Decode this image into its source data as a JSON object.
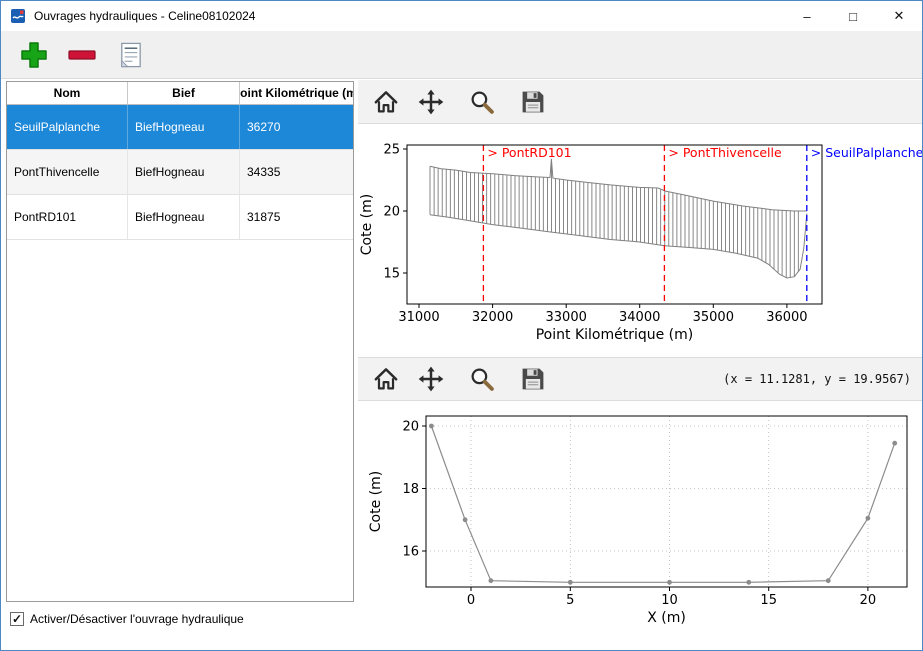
{
  "window": {
    "title": "Ouvrages hydrauliques - Celine08102024",
    "controls": {
      "minimize": "–",
      "maximize": "□",
      "close": "✕"
    }
  },
  "colors": {
    "selection": "#1d87d8",
    "add_green": "#17a417",
    "remove_red": "#cf1238",
    "annotation_red": "#ff0000",
    "annotation_blue": "#0000ff"
  },
  "main_toolbar": {
    "buttons": [
      {
        "icon": "add-icon"
      },
      {
        "icon": "remove-icon"
      },
      {
        "icon": "edit-list-icon"
      }
    ]
  },
  "table": {
    "columns": [
      "Nom",
      "Bief",
      "Point Kilométrique (m)"
    ],
    "rows": [
      {
        "nom": "SeuilPalplanche",
        "bief": "BiefHogneau",
        "pk": "36270",
        "selected": true
      },
      {
        "nom": "PontThivencelle",
        "bief": "BiefHogneau",
        "pk": "34335",
        "selected": false
      },
      {
        "nom": "PontRD101",
        "bief": "BiefHogneau",
        "pk": "31875",
        "selected": false
      }
    ]
  },
  "footer": {
    "checkbox_label": "Activer/Désactiver l'ouvrage hydraulique",
    "checkbox_checked": true
  },
  "plot_toolbar_icons": [
    "home-icon",
    "pan-icon",
    "zoom-icon",
    "save-icon"
  ],
  "chart_data": [
    {
      "type": "line",
      "title": "",
      "xlabel": "Point Kilométrique (m)",
      "ylabel": "Cote (m)",
      "xlim": [
        30837,
        36477
      ],
      "ylim": [
        12.5,
        25.32
      ],
      "xticks": [
        31000,
        32000,
        33000,
        34000,
        35000,
        36000
      ],
      "yticks": [
        15,
        20,
        25
      ],
      "grid": false,
      "hatch": {
        "top": 0,
        "bottom": 1,
        "from": 31150,
        "to": 36200,
        "step": 55,
        "color": "#6a6a6a"
      },
      "series": [
        {
          "name": "crest-profile",
          "color": "#808080",
          "width": 1,
          "markers": false,
          "x": [
            31150,
            31300,
            31500,
            31700,
            32000,
            32300,
            32600,
            32780,
            32800,
            32820,
            33000,
            33300,
            33600,
            34000,
            34250,
            34350,
            34600,
            35000,
            35400,
            35800,
            36100,
            36270
          ],
          "y": [
            23.6,
            23.4,
            23.3,
            23.1,
            23.0,
            22.85,
            22.75,
            22.7,
            24.2,
            22.65,
            22.5,
            22.3,
            22.1,
            21.9,
            21.85,
            21.6,
            21.3,
            20.8,
            20.4,
            20.1,
            20.0,
            20.0
          ]
        },
        {
          "name": "bed-profile",
          "color": "#808080",
          "width": 1,
          "markers": false,
          "x": [
            31150,
            31400,
            31700,
            32000,
            32400,
            32800,
            33200,
            33600,
            34000,
            34335,
            34700,
            35000,
            35300,
            35600,
            35750,
            35900,
            36000,
            36100,
            36180,
            36230,
            36270
          ],
          "y": [
            19.7,
            19.5,
            19.2,
            18.9,
            18.6,
            18.3,
            18.0,
            17.7,
            17.5,
            17.2,
            17.05,
            16.9,
            16.6,
            16.2,
            15.7,
            14.9,
            14.6,
            14.7,
            15.3,
            17.0,
            19.8
          ]
        }
      ],
      "annotations": [
        {
          "x": 31875,
          "label": "> PontRD101",
          "color": "#ff0000"
        },
        {
          "x": 34335,
          "label": "> PontThivencelle",
          "color": "#ff0000"
        },
        {
          "x": 36270,
          "label": "> SeuilPalplanche",
          "color": "#0000ff"
        }
      ]
    },
    {
      "type": "line",
      "title": "",
      "xlabel": "X (m)",
      "ylabel": "Cote (m)",
      "xlim": [
        -2.27,
        21.97
      ],
      "ylim": [
        14.85,
        20.32
      ],
      "xticks": [
        0,
        5,
        10,
        15,
        20
      ],
      "yticks": [
        16,
        18,
        20
      ],
      "grid": true,
      "series": [
        {
          "name": "cross-section",
          "color": "#8c8c8c",
          "width": 1.2,
          "markers": true,
          "x": [
            -2,
            -0.3,
            1,
            5,
            10,
            14,
            18,
            20,
            21.35
          ],
          "y": [
            20,
            17,
            15.05,
            15,
            15,
            15,
            15.05,
            17.05,
            19.45
          ]
        }
      ],
      "annotations": [],
      "coords_readout": "(x = 11.1281,  y = 19.9567)"
    }
  ]
}
